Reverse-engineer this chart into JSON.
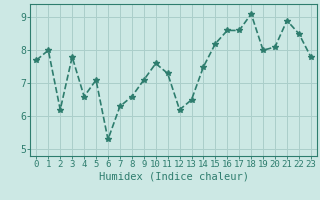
{
  "x": [
    0,
    1,
    2,
    3,
    4,
    5,
    6,
    7,
    8,
    9,
    10,
    11,
    12,
    13,
    14,
    15,
    16,
    17,
    18,
    19,
    20,
    21,
    22,
    23
  ],
  "y": [
    7.7,
    8.0,
    6.2,
    7.8,
    6.6,
    7.1,
    5.3,
    6.3,
    6.6,
    7.1,
    7.6,
    7.3,
    6.2,
    6.5,
    7.5,
    8.2,
    8.6,
    8.6,
    9.1,
    8.0,
    8.1,
    8.9,
    8.5,
    7.8
  ],
  "line_color": "#2e7d6e",
  "marker": "*",
  "marker_size": 4,
  "bg_color": "#cce8e4",
  "grid_color": "#aaceca",
  "xlabel": "Humidex (Indice chaleur)",
  "xlim": [
    -0.5,
    23.5
  ],
  "ylim": [
    4.8,
    9.4
  ],
  "yticks": [
    5,
    6,
    7,
    8,
    9
  ],
  "xticks": [
    0,
    1,
    2,
    3,
    4,
    5,
    6,
    7,
    8,
    9,
    10,
    11,
    12,
    13,
    14,
    15,
    16,
    17,
    18,
    19,
    20,
    21,
    22,
    23
  ],
  "axis_color": "#2e7d6e",
  "tick_color": "#2e7d6e",
  "font_size": 6.5,
  "xlabel_fontsize": 7.5,
  "linewidth": 1.2
}
